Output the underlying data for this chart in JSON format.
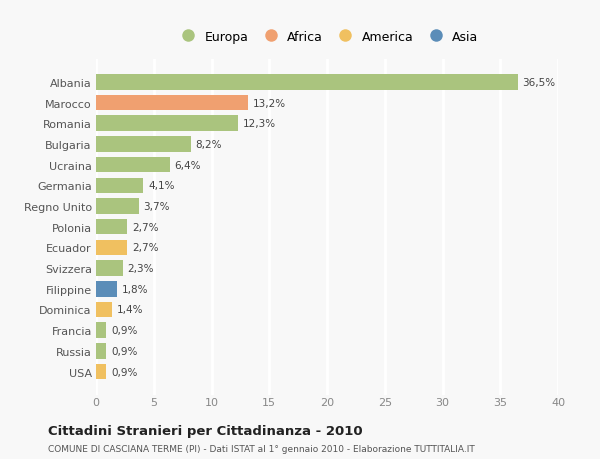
{
  "categories": [
    "Albania",
    "Marocco",
    "Romania",
    "Bulgaria",
    "Ucraina",
    "Germania",
    "Regno Unito",
    "Polonia",
    "Ecuador",
    "Svizzera",
    "Filippine",
    "Dominica",
    "Francia",
    "Russia",
    "USA"
  ],
  "values": [
    36.5,
    13.2,
    12.3,
    8.2,
    6.4,
    4.1,
    3.7,
    2.7,
    2.7,
    2.3,
    1.8,
    1.4,
    0.9,
    0.9,
    0.9
  ],
  "labels": [
    "36,5%",
    "13,2%",
    "12,3%",
    "8,2%",
    "6,4%",
    "4,1%",
    "3,7%",
    "2,7%",
    "2,7%",
    "2,3%",
    "1,8%",
    "1,4%",
    "0,9%",
    "0,9%",
    "0,9%"
  ],
  "bar_colors": [
    "#aac47e",
    "#f0a070",
    "#aac47e",
    "#aac47e",
    "#aac47e",
    "#aac47e",
    "#aac47e",
    "#aac47e",
    "#f0c060",
    "#aac47e",
    "#5b8db8",
    "#f0c060",
    "#aac47e",
    "#aac47e",
    "#f0c060"
  ],
  "legend_labels": [
    "Europa",
    "Africa",
    "America",
    "Asia"
  ],
  "legend_colors": [
    "#aac47e",
    "#f0a070",
    "#f0c060",
    "#5b8db8"
  ],
  "title": "Cittadini Stranieri per Cittadinanza - 2010",
  "subtitle": "COMUNE DI CASCIANA TERME (PI) - Dati ISTAT al 1° gennaio 2010 - Elaborazione TUTTITALIA.IT",
  "xlim": [
    0,
    40
  ],
  "xticks": [
    0,
    5,
    10,
    15,
    20,
    25,
    30,
    35,
    40
  ],
  "background_color": "#f8f8f8",
  "grid_color": "#ffffff",
  "bar_height": 0.75
}
